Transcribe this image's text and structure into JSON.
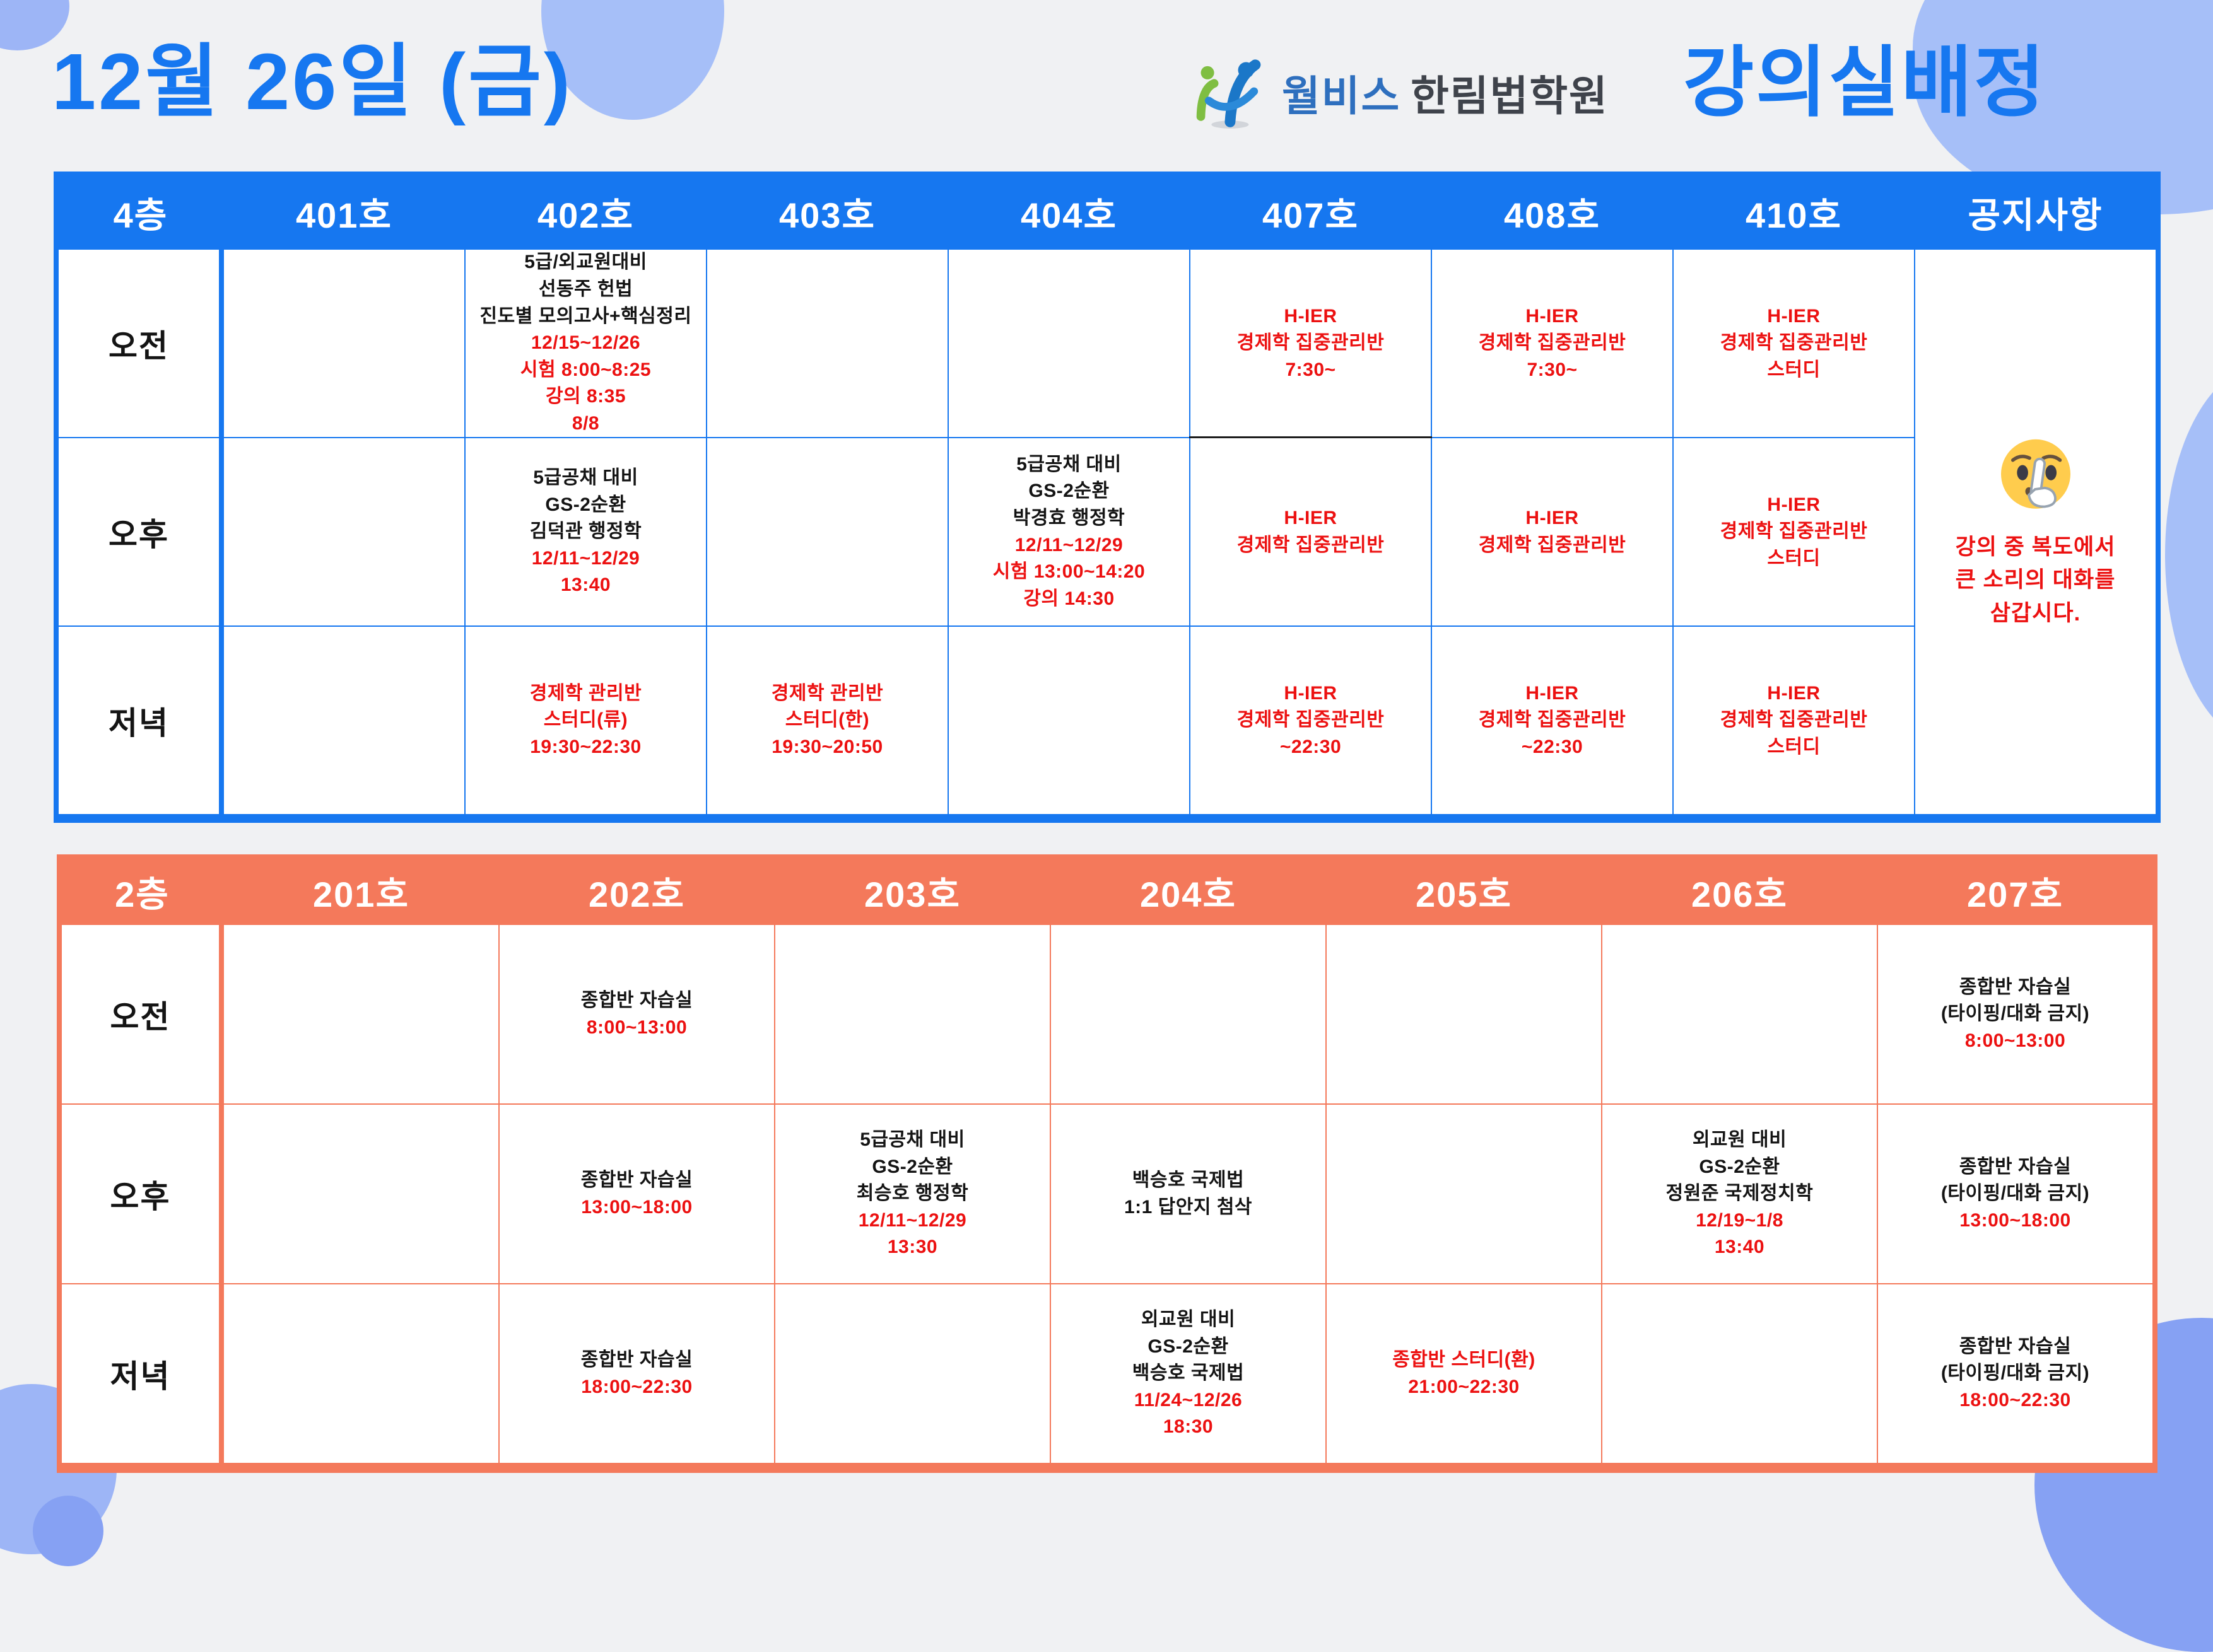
{
  "page": {
    "title": "12월 26일 (금)",
    "brand": "월비스",
    "academy": "한림법학원",
    "heading": "강의실배정"
  },
  "colors": {
    "floor4_accent": "#1677F0",
    "floor2_accent": "#F4795B",
    "highlight_red": "#EC1111"
  },
  "floor4": {
    "label": "4층",
    "columns": [
      "401호",
      "402호",
      "403호",
      "404호",
      "407호",
      "408호",
      "410호",
      "공지사항"
    ],
    "rows": [
      {
        "label": "오전",
        "cells": [
          [],
          [
            {
              "t": "5급/외교원대비",
              "c": "k"
            },
            {
              "t": "선동주 헌법",
              "c": "k"
            },
            {
              "t": "진도별 모의고사+핵심정리",
              "c": "k"
            },
            {
              "t": "12/15~12/26",
              "c": "r"
            },
            {
              "t": "시험 8:00~8:25",
              "c": "r"
            },
            {
              "t": "강의 8:35",
              "c": "r"
            },
            {
              "t": "8/8",
              "c": "r"
            }
          ],
          [],
          [],
          {
            "q": "dark-bottom",
            "lines": [
              {
                "t": "H-IER",
                "c": "r"
              },
              {
                "t": "경제학 집중관리반",
                "c": "r"
              },
              {
                "t": "7:30~",
                "c": "r"
              }
            ]
          },
          [
            {
              "t": "H-IER",
              "c": "r"
            },
            {
              "t": "경제학 집중관리반",
              "c": "r"
            },
            {
              "t": "7:30~",
              "c": "r"
            }
          ],
          [
            {
              "t": "H-IER",
              "c": "r"
            },
            {
              "t": "경제학 집중관리반",
              "c": "r"
            },
            {
              "t": "스터디",
              "c": "r"
            }
          ]
        ]
      },
      {
        "label": "오후",
        "cells": [
          [],
          [
            {
              "t": "5급공채 대비",
              "c": "k"
            },
            {
              "t": "GS-2순환",
              "c": "k"
            },
            {
              "t": "김덕관 행정학",
              "c": "k"
            },
            {
              "t": "12/11~12/29",
              "c": "r"
            },
            {
              "t": "13:40",
              "c": "r"
            }
          ],
          [],
          [
            {
              "t": "5급공채 대비",
              "c": "k"
            },
            {
              "t": "GS-2순환",
              "c": "k"
            },
            {
              "t": "박경효 행정학",
              "c": "k"
            },
            {
              "t": "12/11~12/29",
              "c": "r"
            },
            {
              "t": "시험 13:00~14:20",
              "c": "r"
            },
            {
              "t": "강의 14:30",
              "c": "r"
            }
          ],
          [
            {
              "t": "H-IER",
              "c": "r"
            },
            {
              "t": "경제학 집중관리반",
              "c": "r"
            }
          ],
          [
            {
              "t": "H-IER",
              "c": "r"
            },
            {
              "t": "경제학 집중관리반",
              "c": "r"
            }
          ],
          [
            {
              "t": "H-IER",
              "c": "r"
            },
            {
              "t": "경제학 집중관리반",
              "c": "r"
            },
            {
              "t": "스터디",
              "c": "r"
            }
          ]
        ]
      },
      {
        "label": "저녁",
        "cells": [
          [],
          [
            {
              "t": "경제학 관리반",
              "c": "r"
            },
            {
              "t": "스터디(류)",
              "c": "r"
            },
            {
              "t": "19:30~22:30",
              "c": "r"
            }
          ],
          [
            {
              "t": "경제학 관리반",
              "c": "r"
            },
            {
              "t": "스터디(한)",
              "c": "r"
            },
            {
              "t": "19:30~20:50",
              "c": "r"
            }
          ],
          [],
          [
            {
              "t": "H-IER",
              "c": "r"
            },
            {
              "t": "경제학 집중관리반",
              "c": "r"
            },
            {
              "t": "~22:30",
              "c": "r"
            }
          ],
          [
            {
              "t": "H-IER",
              "c": "r"
            },
            {
              "t": "경제학 집중관리반",
              "c": "r"
            },
            {
              "t": "~22:30",
              "c": "r"
            }
          ],
          [
            {
              "t": "H-IER",
              "c": "r"
            },
            {
              "t": "경제학 집중관리반",
              "c": "r"
            },
            {
              "t": "스터디",
              "c": "r"
            }
          ]
        ]
      }
    ],
    "notice": {
      "icon": "shushing-face-icon",
      "lines": [
        "강의 중 복도에서",
        "큰 소리의 대화를",
        "삼갑시다."
      ]
    }
  },
  "floor2": {
    "label": "2층",
    "columns": [
      "201호",
      "202호",
      "203호",
      "204호",
      "205호",
      "206호",
      "207호"
    ],
    "rows": [
      {
        "label": "오전",
        "cells": [
          [],
          [
            {
              "t": "종합반 자습실",
              "c": "k"
            },
            {
              "t": "8:00~13:00",
              "c": "r"
            }
          ],
          [],
          [],
          [],
          [],
          [
            {
              "t": "종합반 자습실",
              "c": "k"
            },
            {
              "t": "(타이핑/대화 금지)",
              "c": "k"
            },
            {
              "t": "8:00~13:00",
              "c": "r"
            }
          ]
        ]
      },
      {
        "label": "오후",
        "cells": [
          [],
          [
            {
              "t": "종합반 자습실",
              "c": "k"
            },
            {
              "t": "13:00~18:00",
              "c": "r"
            }
          ],
          [
            {
              "t": "5급공채 대비",
              "c": "k"
            },
            {
              "t": "GS-2순환",
              "c": "k"
            },
            {
              "t": "최승호 행정학",
              "c": "k"
            },
            {
              "t": "12/11~12/29",
              "c": "r"
            },
            {
              "t": "13:30",
              "c": "r"
            }
          ],
          [
            {
              "t": "백승호 국제법",
              "c": "k"
            },
            {
              "t": "1:1 답안지 첨삭",
              "c": "k"
            }
          ],
          [],
          [
            {
              "t": "외교원 대비",
              "c": "k"
            },
            {
              "t": "GS-2순환",
              "c": "k"
            },
            {
              "t": "정원준 국제정치학",
              "c": "k"
            },
            {
              "t": "12/19~1/8",
              "c": "r"
            },
            {
              "t": "13:40",
              "c": "r"
            }
          ],
          [
            {
              "t": "종합반 자습실",
              "c": "k"
            },
            {
              "t": "(타이핑/대화 금지)",
              "c": "k"
            },
            {
              "t": "13:00~18:00",
              "c": "r"
            }
          ]
        ]
      },
      {
        "label": "저녁",
        "cells": [
          [],
          [
            {
              "t": "종합반 자습실",
              "c": "k"
            },
            {
              "t": "18:00~22:30",
              "c": "r"
            }
          ],
          [],
          [
            {
              "t": "외교원 대비",
              "c": "k"
            },
            {
              "t": "GS-2순환",
              "c": "k"
            },
            {
              "t": "백승호 국제법",
              "c": "k"
            },
            {
              "t": "11/24~12/26",
              "c": "r"
            },
            {
              "t": "18:30",
              "c": "r"
            }
          ],
          [
            {
              "t": "종합반 스터디(환)",
              "c": "r"
            },
            {
              "t": "21:00~22:30",
              "c": "r"
            }
          ],
          [],
          [
            {
              "t": "종합반 자습실",
              "c": "k"
            },
            {
              "t": "(타이핑/대화 금지)",
              "c": "k"
            },
            {
              "t": "18:00~22:30",
              "c": "r"
            }
          ]
        ]
      }
    ]
  }
}
